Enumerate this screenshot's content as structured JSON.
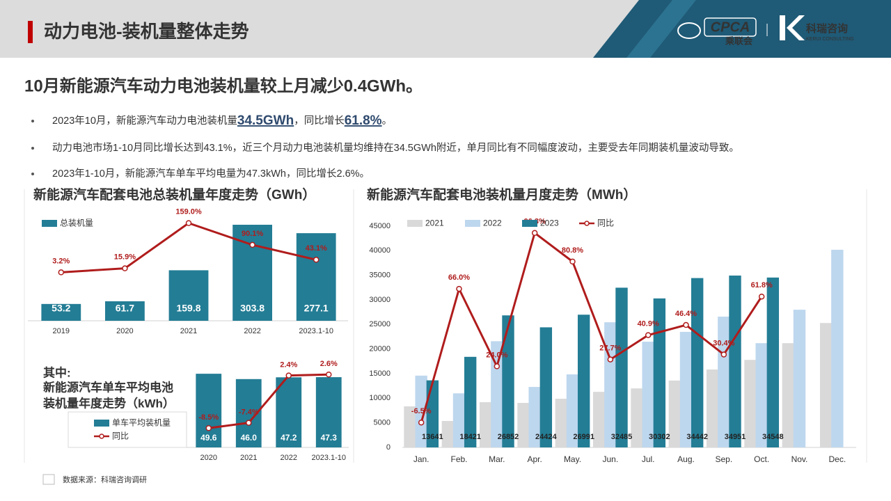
{
  "header": {
    "title": "动力电池-装机量整体走势",
    "cpca": "CPCA",
    "cpca_sub": "乘联会",
    "kerui": "科瑞咨询",
    "kerui_sub": "KERUI CONSULTING"
  },
  "headline": "10月新能源汽车动力电池装机量较上月减少0.4GWh。",
  "bullets": [
    [
      "2023年10月，新能源汽车动力电池装机量",
      "34.5GWh",
      "，同比增长",
      "61.8%",
      "。"
    ],
    "动力电池市场1-10月同比增长达到43.1%，近三个月动力电池装机量均维持在34.5GWh附近，单月同比有不同幅度波动，主要受去年同期装机量波动导致。",
    "2023年1-10月，新能源汽车单车平均电量为47.3kWh，同比增长2.6%。"
  ],
  "source": "数据来源：科瑞咨询调研",
  "chart_data": [
    {
      "type": "combo",
      "title": "新能源汽车配套电池总装机量年度走势（GWh）",
      "categories": [
        "2019",
        "2020",
        "2021",
        "2022",
        "2023.1-10"
      ],
      "ylim": [
        0,
        350
      ],
      "y2lim": [
        -150,
        200
      ],
      "series": [
        {
          "name": "总装机量",
          "type": "bar",
          "color": "#237d95",
          "data_labels": true,
          "values": [
            53.2,
            61.7,
            159.8,
            303.8,
            277.1
          ]
        },
        {
          "type": "line",
          "axis": "y2",
          "color": "#b01c1c",
          "data_labels": true,
          "values": [
            3.2,
            15.9,
            159.0,
            90.1,
            43.1
          ],
          "value_labels": [
            "3.2%",
            "15.9%",
            "159.0%",
            "90.1%",
            "43.1%"
          ]
        }
      ]
    },
    {
      "type": "combo",
      "title": [
        "其中:",
        "新能源汽车单车平均电池",
        "装机量年度走势（kWh）"
      ],
      "categories": [
        "2020",
        "2021",
        "2022",
        "2023.1-10"
      ],
      "ylim": [
        0,
        52
      ],
      "y2lim": [
        -12.5,
        3.5
      ],
      "series": [
        {
          "name": "单车平均装机量",
          "type": "bar",
          "color": "#237d95",
          "data_labels": true,
          "values": [
            49.6,
            46.0,
            47.2,
            47.3
          ],
          "value_labels": [
            "49.6",
            "46.0",
            "47.2",
            "47.3"
          ]
        },
        {
          "name": "同比",
          "type": "line",
          "axis": "y2",
          "color": "#b01c1c",
          "data_labels": true,
          "values": [
            -8.5,
            -7.4,
            2.4,
            2.6
          ],
          "value_labels": [
            "-8.5%",
            "-7.4%",
            "2.4%",
            "2.6%"
          ]
        }
      ]
    },
    {
      "type": "combo",
      "title": "新能源汽车配套电池装机量月度走势（MWh）",
      "categories": [
        "Jan.",
        "Feb.",
        "Mar.",
        "Apr.",
        "May.",
        "Jun.",
        "Jul.",
        "Aug.",
        "Sep.",
        "Oct.",
        "Nov.",
        "Dec."
      ],
      "ylim": [
        0,
        45000
      ],
      "yticks": [
        0,
        5000,
        10000,
        15000,
        20000,
        25000,
        30000,
        35000,
        40000,
        45000
      ],
      "y2lim": [
        -20,
        100
      ],
      "grid": false,
      "series": [
        {
          "name": "2021",
          "type": "bar",
          "color": "#d9d9d9",
          "values": [
            8350,
            5380,
            9200,
            9050,
            9900,
            11300,
            12000,
            13600,
            15850,
            17800,
            21200,
            25300
          ]
        },
        {
          "name": "2022",
          "type": "bar",
          "color": "#bdd7ee",
          "values": [
            14600,
            11000,
            21600,
            12300,
            14850,
            25450,
            21500,
            23500,
            26600,
            21200,
            28000,
            40200
          ]
        },
        {
          "name": "2023",
          "type": "bar",
          "color": "#237d95",
          "data_labels": true,
          "values": [
            13641,
            18421,
            26852,
            24424,
            26991,
            32485,
            30302,
            34442,
            34951,
            34548,
            null,
            null
          ]
        },
        {
          "name": "同比",
          "type": "line",
          "axis": "y2",
          "color": "#b01c1c",
          "data_labels": true,
          "values": [
            -6.5,
            66.0,
            24.0,
            96.3,
            80.8,
            27.7,
            40.9,
            46.4,
            30.4,
            61.8,
            null,
            null
          ],
          "value_labels": [
            "-6.5%",
            "66.0%",
            "24.0%",
            "96.3%",
            "80.8%",
            "27.7%",
            "40.9%",
            "46.4%",
            "30.4%",
            "61.8%",
            null,
            null
          ]
        }
      ]
    }
  ]
}
